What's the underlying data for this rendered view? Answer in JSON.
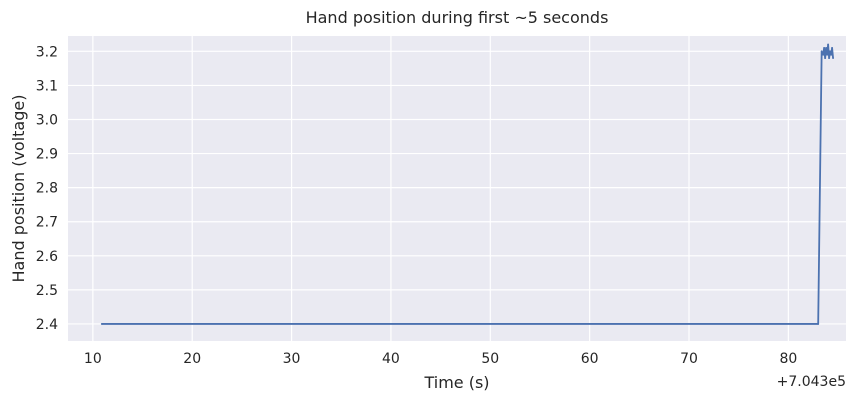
{
  "chart_data": {
    "type": "line",
    "title": "Hand position during first ~5 seconds",
    "xlabel": "Time (s)",
    "ylabel": "Hand position (voltage)",
    "x_offset_label": "+7.043e5",
    "xlim": [
      7.5,
      85.8
    ],
    "ylim": [
      2.35,
      3.245
    ],
    "x_ticks": [
      10,
      20,
      30,
      40,
      50,
      60,
      70,
      80
    ],
    "y_ticks": [
      2.4,
      2.5,
      2.6,
      2.7,
      2.8,
      2.9,
      3.0,
      3.1,
      3.2
    ],
    "grid": true,
    "legend": "none",
    "colors": {
      "line": "#4c72b0",
      "background": "#eaeaf2",
      "grid": "#ffffff"
    },
    "series": [
      {
        "x": [
          10.9,
          83.0,
          83.35,
          83.5,
          83.6,
          83.7,
          83.8,
          83.9,
          84.0,
          84.1,
          84.2,
          84.3,
          84.4,
          84.5
        ],
        "values": [
          2.4,
          2.4,
          3.2,
          3.19,
          3.21,
          3.18,
          3.21,
          3.19,
          3.22,
          3.18,
          3.2,
          3.19,
          3.21,
          3.18
        ]
      }
    ]
  }
}
